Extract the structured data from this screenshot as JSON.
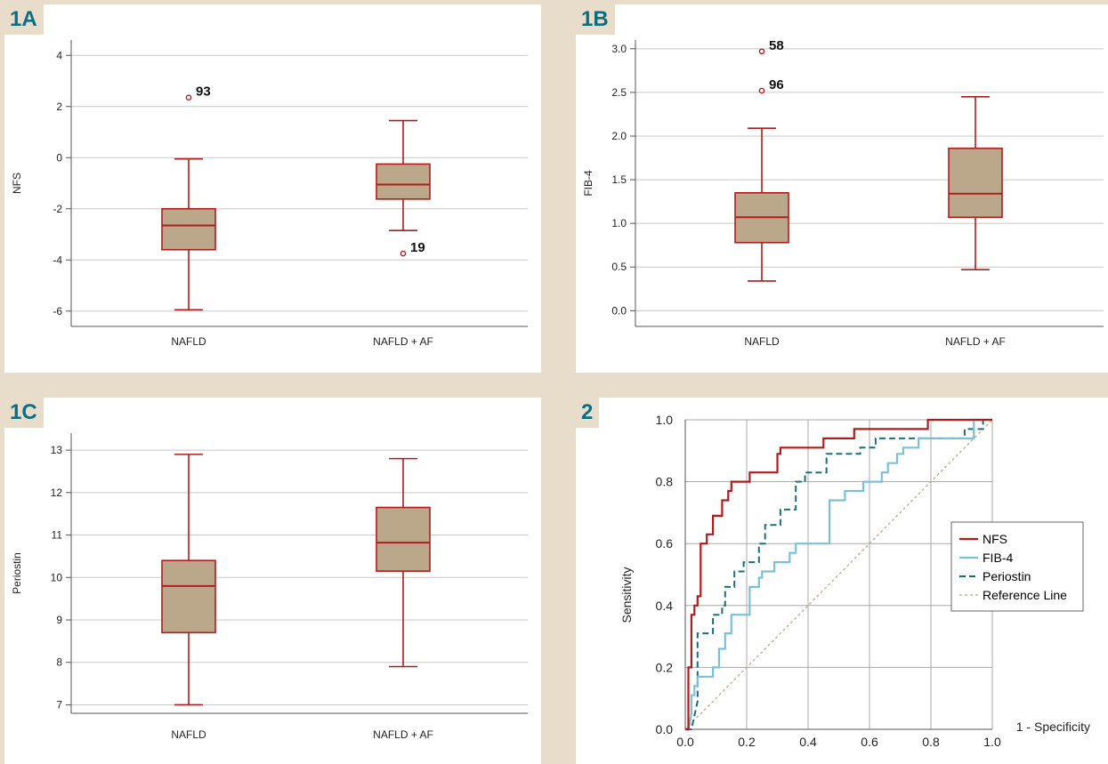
{
  "colors": {
    "background": "#e8dcca",
    "panel_label": "#0d6e82",
    "box_fill": "#bba88a",
    "box_stroke": "#b01c1c",
    "grid": "#c8c8c8",
    "nfs": "#b01c1c",
    "fib4": "#7bc0da",
    "periostin": "#1a6e80",
    "reference": "#b9ab90"
  },
  "chart_data": [
    {
      "id": "1A",
      "panel_label": "1A",
      "type": "box",
      "title": "",
      "ylabel": "NFS",
      "xlabel": "",
      "ylim": [
        -6.6,
        4.6
      ],
      "yticks": [
        "4",
        "2",
        "0",
        "-2",
        "-4",
        "-6"
      ],
      "ytick_values": [
        4,
        2,
        0,
        -2,
        -4,
        -6
      ],
      "categories": [
        "NAFLD",
        "NAFLD + AF"
      ],
      "boxes": [
        {
          "min": -5.95,
          "q1": -3.6,
          "median": -2.65,
          "q3": -2.0,
          "max": -0.05,
          "outliers": [
            {
              "value": 2.35,
              "label": "93"
            }
          ]
        },
        {
          "min": -2.85,
          "q1": -1.62,
          "median": -1.05,
          "q3": -0.25,
          "max": 1.45,
          "outliers": [
            {
              "value": -3.75,
              "label": "19"
            }
          ]
        }
      ],
      "grid": true
    },
    {
      "id": "1B",
      "panel_label": "1B",
      "type": "box",
      "title": "",
      "ylabel": "FIB-4",
      "xlabel": "",
      "ylim": [
        -0.18,
        3.1
      ],
      "yticks": [
        "3.0",
        "2.5",
        "2.0",
        "1.5",
        "1.0",
        "0.5",
        "0.0"
      ],
      "ytick_values": [
        3.0,
        2.5,
        2.0,
        1.5,
        1.0,
        0.5,
        0.0
      ],
      "categories": [
        "NAFLD",
        "NAFLD + AF"
      ],
      "boxes": [
        {
          "min": 0.34,
          "q1": 0.78,
          "median": 1.07,
          "q3": 1.35,
          "max": 2.09,
          "outliers": [
            {
              "value": 2.97,
              "label": "58"
            },
            {
              "value": 2.52,
              "label": "96"
            }
          ]
        },
        {
          "min": 0.47,
          "q1": 1.07,
          "median": 1.34,
          "q3": 1.86,
          "max": 2.45,
          "outliers": []
        }
      ],
      "grid": true
    },
    {
      "id": "1C",
      "panel_label": "1C",
      "type": "box",
      "title": "",
      "ylabel": "Periostin",
      "xlabel": "",
      "ylim": [
        6.8,
        13.4
      ],
      "yticks": [
        "13",
        "12",
        "11",
        "10",
        "9",
        "8",
        "7"
      ],
      "ytick_values": [
        13,
        12,
        11,
        10,
        9,
        8,
        7
      ],
      "categories": [
        "NAFLD",
        "NAFLD + AF"
      ],
      "boxes": [
        {
          "min": 7.0,
          "q1": 8.7,
          "median": 9.8,
          "q3": 10.4,
          "max": 12.9,
          "outliers": []
        },
        {
          "min": 7.9,
          "q1": 10.15,
          "median": 10.82,
          "q3": 11.65,
          "max": 12.8,
          "outliers": []
        }
      ],
      "grid": true
    },
    {
      "id": "2",
      "panel_label": "2",
      "type": "line",
      "title": "",
      "xlabel": "1 - Specificity",
      "ylabel": "Sensitivity",
      "xlim": [
        0,
        1
      ],
      "ylim": [
        0,
        1
      ],
      "xticks": [
        "0.0",
        "0.2",
        "0.4",
        "0.6",
        "0.8",
        "1.0"
      ],
      "xtick_values": [
        0,
        0.2,
        0.4,
        0.6,
        0.8,
        1.0
      ],
      "yticks": [
        "1.0",
        "0.8",
        "0.6",
        "0.4",
        "0.2",
        "0.0"
      ],
      "ytick_values": [
        1.0,
        0.8,
        0.6,
        0.4,
        0.2,
        0.0
      ],
      "grid": true,
      "legend_position": "center-right",
      "series": [
        {
          "name": "NFS",
          "style": "solid",
          "color": "#b01c1c",
          "x": [
            0,
            0.01,
            0.01,
            0.02,
            0.02,
            0.03,
            0.03,
            0.04,
            0.04,
            0.05,
            0.05,
            0.07,
            0.07,
            0.09,
            0.09,
            0.12,
            0.12,
            0.14,
            0.14,
            0.15,
            0.15,
            0.16,
            0.16,
            0.21,
            0.21,
            0.3,
            0.3,
            0.31,
            0.31,
            0.45,
            0.45,
            0.55,
            0.55,
            0.79,
            0.79,
            1.0
          ],
          "y": [
            0,
            0,
            0.2,
            0.2,
            0.37,
            0.37,
            0.4,
            0.4,
            0.43,
            0.43,
            0.6,
            0.6,
            0.63,
            0.63,
            0.69,
            0.69,
            0.74,
            0.74,
            0.77,
            0.77,
            0.8,
            0.8,
            0.8,
            0.8,
            0.83,
            0.83,
            0.89,
            0.89,
            0.91,
            0.91,
            0.94,
            0.94,
            0.97,
            0.97,
            1.0,
            1.0
          ]
        },
        {
          "name": "FIB-4",
          "style": "solid",
          "color": "#7bc0da",
          "x": [
            0,
            0.01,
            0.02,
            0.02,
            0.03,
            0.03,
            0.04,
            0.04,
            0.09,
            0.09,
            0.11,
            0.11,
            0.13,
            0.13,
            0.15,
            0.15,
            0.21,
            0.21,
            0.24,
            0.24,
            0.25,
            0.25,
            0.29,
            0.29,
            0.31,
            0.31,
            0.34,
            0.34,
            0.36,
            0.36,
            0.47,
            0.47,
            0.52,
            0.52,
            0.58,
            0.58,
            0.64,
            0.64,
            0.66,
            0.66,
            0.69,
            0.69,
            0.71,
            0.71,
            0.76,
            0.76,
            0.82,
            0.82,
            0.94,
            0.94,
            1.0
          ],
          "y": [
            0,
            0,
            0.05,
            0.11,
            0.11,
            0.14,
            0.14,
            0.17,
            0.17,
            0.2,
            0.2,
            0.26,
            0.26,
            0.31,
            0.31,
            0.37,
            0.37,
            0.46,
            0.46,
            0.49,
            0.49,
            0.51,
            0.51,
            0.54,
            0.54,
            0.54,
            0.54,
            0.57,
            0.57,
            0.6,
            0.6,
            0.74,
            0.74,
            0.77,
            0.77,
            0.8,
            0.8,
            0.83,
            0.83,
            0.86,
            0.86,
            0.89,
            0.89,
            0.91,
            0.91,
            0.94,
            0.94,
            0.94,
            0.94,
            1.0,
            1.0
          ]
        },
        {
          "name": "Periostin",
          "style": "dashed",
          "color": "#1a6e80",
          "x": [
            0,
            0.02,
            0.04,
            0.04,
            0.09,
            0.09,
            0.12,
            0.12,
            0.13,
            0.13,
            0.16,
            0.16,
            0.19,
            0.19,
            0.24,
            0.24,
            0.26,
            0.26,
            0.31,
            0.31,
            0.36,
            0.36,
            0.39,
            0.39,
            0.46,
            0.46,
            0.57,
            0.57,
            0.62,
            0.62,
            0.8,
            0.8,
            0.91,
            0.91,
            0.97,
            0.97,
            1.0
          ],
          "y": [
            0,
            0,
            0.09,
            0.31,
            0.31,
            0.37,
            0.37,
            0.4,
            0.4,
            0.46,
            0.46,
            0.51,
            0.51,
            0.54,
            0.54,
            0.6,
            0.6,
            0.66,
            0.66,
            0.71,
            0.71,
            0.8,
            0.8,
            0.83,
            0.83,
            0.89,
            0.89,
            0.91,
            0.91,
            0.94,
            0.94,
            0.94,
            0.94,
            0.97,
            0.97,
            1.0,
            1.0
          ]
        },
        {
          "name": "Reference Line",
          "style": "dotted",
          "color": "#b9ab90",
          "x": [
            0,
            1
          ],
          "y": [
            0,
            1
          ]
        }
      ]
    }
  ]
}
